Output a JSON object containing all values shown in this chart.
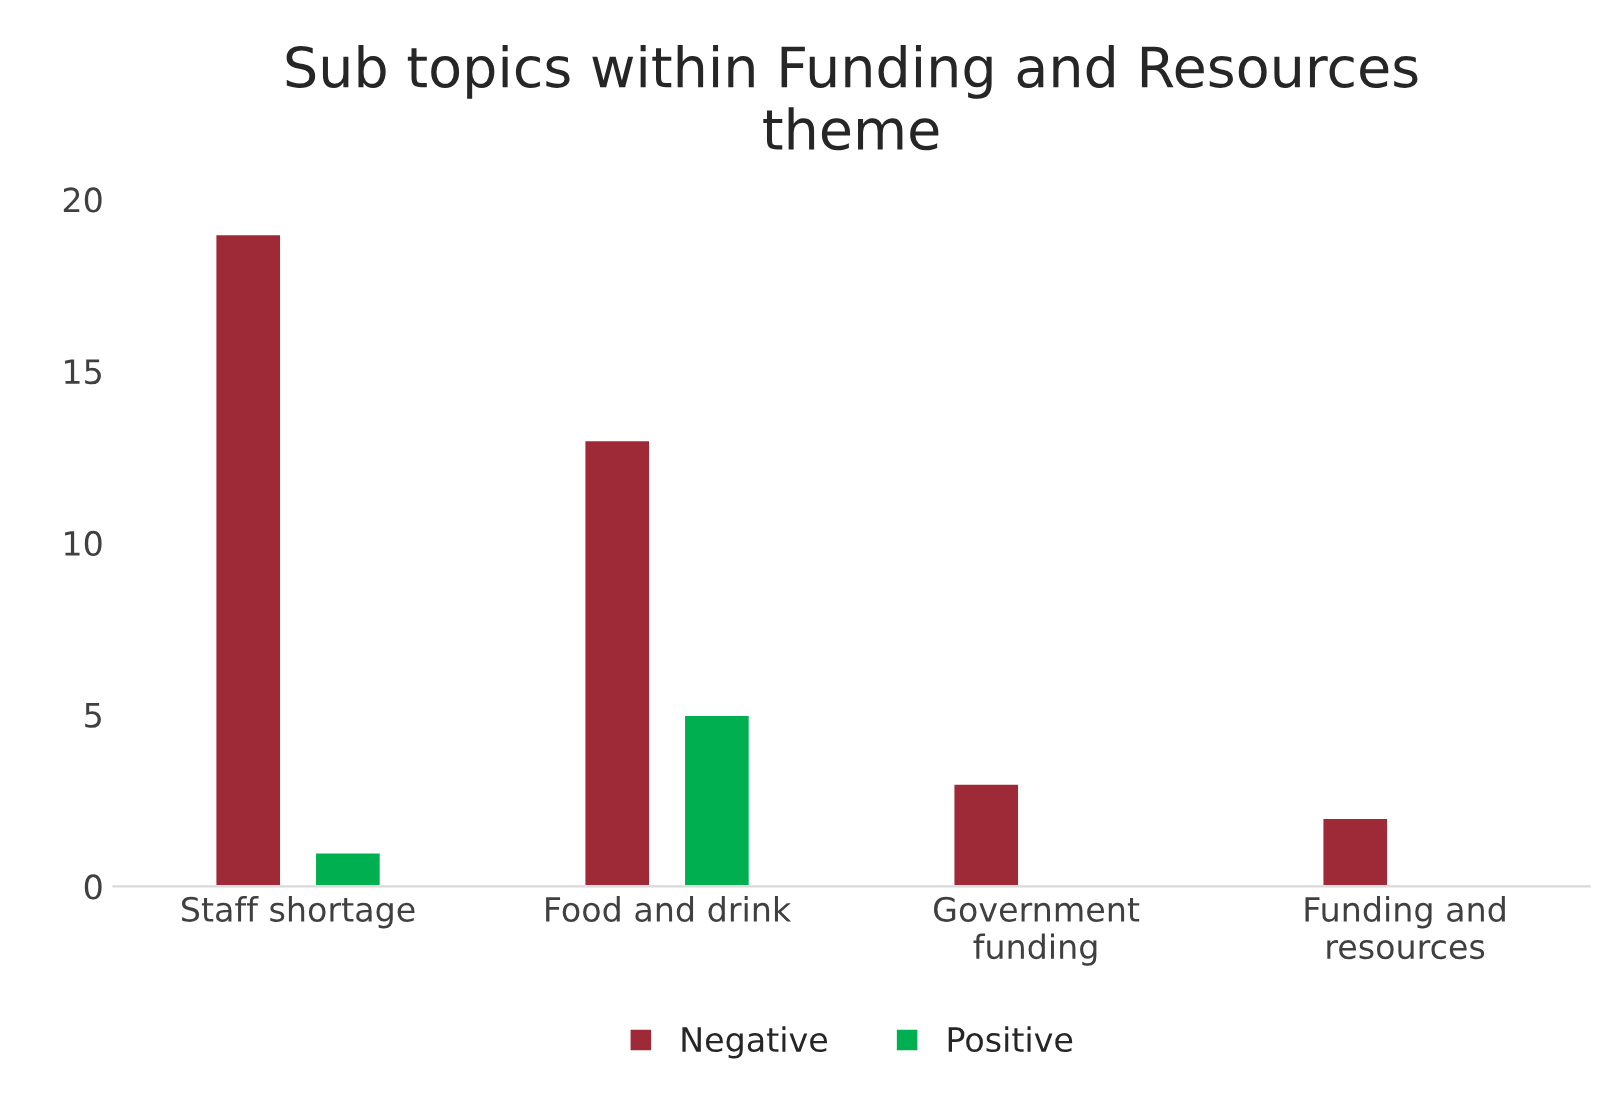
{
  "chart_data": {
    "type": "bar",
    "title": "Sub topics within Funding and Resources\ntheme",
    "categories": [
      "Staff shortage",
      "Food and drink",
      "Government\nfunding",
      "Funding and\nresources"
    ],
    "series": [
      {
        "name": "Negative",
        "color": "#9e2a38",
        "values": [
          19,
          13,
          3,
          2
        ]
      },
      {
        "name": "Positive",
        "color": "#00b050",
        "values": [
          1,
          5,
          null,
          null
        ]
      }
    ],
    "ylim": [
      0,
      20
    ],
    "yticks": [
      0,
      5,
      10,
      15,
      20
    ],
    "grid": false,
    "legend": "bottom"
  }
}
